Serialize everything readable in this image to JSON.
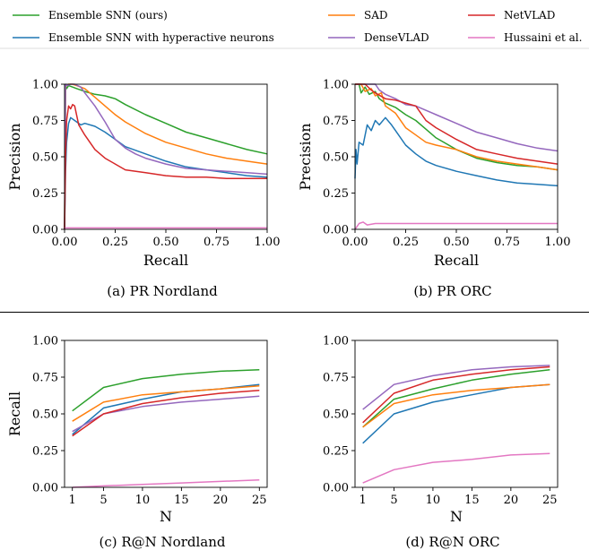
{
  "legend": [
    {
      "key": "ens",
      "label": "Ensemble SNN (ours)",
      "color": "#2ca02c"
    },
    {
      "key": "hyp",
      "label": "Ensemble SNN with hyperactive neurons",
      "color": "#1f77b4"
    },
    {
      "key": "sad",
      "label": "SAD",
      "color": "#ff7f0e"
    },
    {
      "key": "dv",
      "label": "DenseVLAD",
      "color": "#9467bd"
    },
    {
      "key": "nv",
      "label": "NetVLAD",
      "color": "#d62728"
    },
    {
      "key": "hus",
      "label": "Hussaini et al.",
      "color": "#e377c2"
    }
  ],
  "chart_data": [
    {
      "id": "a",
      "type": "line",
      "caption": "(a) PR Nordland",
      "xlabel": "Recall",
      "ylabel": "Precision",
      "xlim": [
        0,
        1
      ],
      "ylim": [
        0,
        1
      ],
      "xticks": [
        "0.00",
        "0.25",
        "0.50",
        "0.75",
        "1.00"
      ],
      "xtick_values": [
        0,
        0.25,
        0.5,
        0.75,
        1.0
      ],
      "yticks": [
        "0.00",
        "0.25",
        "0.50",
        "0.75",
        "1.00"
      ],
      "ytick_values": [
        0,
        0.25,
        0.5,
        0.75,
        1.0
      ],
      "series": [
        {
          "key": "ens",
          "x": [
            0.0,
            0.005,
            0.01,
            0.02,
            0.04,
            0.06,
            0.1,
            0.15,
            0.2,
            0.25,
            0.3,
            0.4,
            0.5,
            0.6,
            0.7,
            0.8,
            0.9,
            1.0
          ],
          "y": [
            0.0,
            0.99,
            0.97,
            0.99,
            0.98,
            0.97,
            0.95,
            0.93,
            0.92,
            0.9,
            0.86,
            0.79,
            0.73,
            0.67,
            0.63,
            0.59,
            0.55,
            0.52
          ]
        },
        {
          "key": "hyp",
          "x": [
            0.0,
            0.005,
            0.01,
            0.02,
            0.03,
            0.05,
            0.08,
            0.1,
            0.15,
            0.2,
            0.25,
            0.3,
            0.4,
            0.5,
            0.6,
            0.7,
            0.8,
            0.9,
            1.0
          ],
          "y": [
            0.0,
            0.4,
            0.6,
            0.73,
            0.77,
            0.75,
            0.72,
            0.73,
            0.71,
            0.67,
            0.62,
            0.57,
            0.52,
            0.47,
            0.43,
            0.41,
            0.39,
            0.37,
            0.36
          ]
        },
        {
          "key": "sad",
          "x": [
            0.0,
            0.005,
            0.01,
            0.02,
            0.04,
            0.06,
            0.1,
            0.15,
            0.2,
            0.25,
            0.3,
            0.4,
            0.5,
            0.6,
            0.7,
            0.8,
            0.9,
            1.0
          ],
          "y": [
            0.0,
            0.98,
            0.99,
            1.0,
            1.0,
            0.99,
            0.97,
            0.91,
            0.85,
            0.79,
            0.74,
            0.66,
            0.6,
            0.56,
            0.52,
            0.49,
            0.47,
            0.45
          ]
        },
        {
          "key": "dv",
          "x": [
            0.0,
            0.005,
            0.01,
            0.03,
            0.05,
            0.08,
            0.1,
            0.15,
            0.2,
            0.25,
            0.3,
            0.35,
            0.4,
            0.5,
            0.6,
            0.7,
            0.8,
            0.9,
            1.0
          ],
          "y": [
            0.0,
            1.0,
            0.99,
            1.0,
            1.0,
            0.98,
            0.94,
            0.85,
            0.74,
            0.62,
            0.56,
            0.52,
            0.49,
            0.45,
            0.42,
            0.41,
            0.4,
            0.39,
            0.38
          ]
        },
        {
          "key": "nv",
          "x": [
            0.0,
            0.005,
            0.01,
            0.02,
            0.03,
            0.04,
            0.05,
            0.07,
            0.1,
            0.15,
            0.2,
            0.25,
            0.3,
            0.4,
            0.5,
            0.6,
            0.7,
            0.8,
            0.9,
            1.0
          ],
          "y": [
            0.0,
            0.5,
            0.75,
            0.85,
            0.83,
            0.86,
            0.85,
            0.72,
            0.65,
            0.55,
            0.49,
            0.45,
            0.41,
            0.39,
            0.37,
            0.36,
            0.36,
            0.35,
            0.35,
            0.35
          ]
        },
        {
          "key": "hus",
          "x": [
            0.0,
            1.0
          ],
          "y": [
            0.01,
            0.01
          ]
        }
      ]
    },
    {
      "id": "b",
      "type": "line",
      "caption": "(b) PR ORC",
      "xlabel": "Recall",
      "ylabel": "Precision",
      "xlim": [
        0,
        1
      ],
      "ylim": [
        0,
        1
      ],
      "xticks": [
        "0.00",
        "0.25",
        "0.50",
        "0.75",
        "1.00"
      ],
      "xtick_values": [
        0,
        0.25,
        0.5,
        0.75,
        1.0
      ],
      "yticks": [
        "0.00",
        "0.25",
        "0.50",
        "0.75",
        "1.00"
      ],
      "ytick_values": [
        0,
        0.25,
        0.5,
        0.75,
        1.0
      ],
      "series": [
        {
          "key": "ens",
          "x": [
            0.0,
            0.02,
            0.03,
            0.05,
            0.07,
            0.1,
            0.12,
            0.15,
            0.2,
            0.25,
            0.3,
            0.35,
            0.4,
            0.5,
            0.6,
            0.7,
            0.8,
            0.9,
            1.0
          ],
          "y": [
            1.0,
            1.0,
            0.94,
            0.98,
            0.93,
            0.95,
            0.9,
            0.87,
            0.84,
            0.79,
            0.75,
            0.69,
            0.63,
            0.55,
            0.49,
            0.46,
            0.44,
            0.43,
            0.41
          ]
        },
        {
          "key": "hyp",
          "x": [
            0.0,
            0.005,
            0.01,
            0.02,
            0.04,
            0.06,
            0.08,
            0.1,
            0.12,
            0.15,
            0.18,
            0.2,
            0.25,
            0.3,
            0.35,
            0.4,
            0.5,
            0.6,
            0.7,
            0.8,
            0.9,
            1.0
          ],
          "y": [
            0.35,
            0.55,
            0.45,
            0.6,
            0.58,
            0.72,
            0.68,
            0.75,
            0.72,
            0.77,
            0.72,
            0.68,
            0.58,
            0.52,
            0.47,
            0.44,
            0.4,
            0.37,
            0.34,
            0.32,
            0.31,
            0.3
          ]
        },
        {
          "key": "sad",
          "x": [
            0.0,
            0.03,
            0.05,
            0.08,
            0.1,
            0.13,
            0.15,
            0.2,
            0.25,
            0.3,
            0.35,
            0.4,
            0.5,
            0.6,
            0.7,
            0.8,
            0.9,
            1.0
          ],
          "y": [
            1.0,
            1.0,
            0.95,
            0.97,
            0.92,
            0.94,
            0.85,
            0.8,
            0.7,
            0.65,
            0.6,
            0.58,
            0.55,
            0.5,
            0.47,
            0.45,
            0.43,
            0.41
          ]
        },
        {
          "key": "dv",
          "x": [
            0.0,
            0.1,
            0.12,
            0.15,
            0.2,
            0.25,
            0.3,
            0.4,
            0.5,
            0.6,
            0.7,
            0.8,
            0.9,
            1.0
          ],
          "y": [
            1.0,
            1.0,
            0.96,
            0.93,
            0.9,
            0.86,
            0.85,
            0.79,
            0.73,
            0.67,
            0.63,
            0.59,
            0.56,
            0.54
          ]
        },
        {
          "key": "nv",
          "x": [
            0.0,
            0.05,
            0.08,
            0.1,
            0.15,
            0.2,
            0.25,
            0.3,
            0.35,
            0.4,
            0.5,
            0.6,
            0.7,
            0.8,
            0.9,
            1.0
          ],
          "y": [
            1.0,
            1.0,
            0.96,
            0.94,
            0.9,
            0.89,
            0.87,
            0.85,
            0.75,
            0.7,
            0.62,
            0.55,
            0.52,
            0.49,
            0.47,
            0.45
          ]
        },
        {
          "key": "hus",
          "x": [
            0.0,
            0.01,
            0.02,
            0.04,
            0.06,
            0.1,
            0.2,
            0.3,
            0.4,
            0.5,
            0.6,
            0.7,
            0.8,
            0.9,
            1.0
          ],
          "y": [
            0.0,
            0.02,
            0.04,
            0.05,
            0.03,
            0.04,
            0.04,
            0.04,
            0.04,
            0.04,
            0.04,
            0.04,
            0.04,
            0.04,
            0.04
          ]
        }
      ]
    },
    {
      "id": "c",
      "type": "line",
      "caption": "(c) R@N Nordland",
      "xlabel": "N",
      "ylabel": "Recall",
      "xlim": [
        0,
        26
      ],
      "ylim": [
        0,
        1
      ],
      "xticks": [
        "1",
        "5",
        "10",
        "15",
        "20",
        "25"
      ],
      "xtick_values": [
        1,
        5,
        10,
        15,
        20,
        25
      ],
      "yticks": [
        "0.00",
        "0.25",
        "0.50",
        "0.75",
        "1.00"
      ],
      "ytick_values": [
        0,
        0.25,
        0.5,
        0.75,
        1.0
      ],
      "series": [
        {
          "key": "ens",
          "x": [
            1,
            5,
            10,
            15,
            20,
            25
          ],
          "y": [
            0.52,
            0.68,
            0.74,
            0.77,
            0.79,
            0.8
          ]
        },
        {
          "key": "hyp",
          "x": [
            1,
            5,
            10,
            15,
            20,
            25
          ],
          "y": [
            0.36,
            0.54,
            0.6,
            0.65,
            0.67,
            0.7
          ]
        },
        {
          "key": "sad",
          "x": [
            1,
            5,
            10,
            15,
            20,
            25
          ],
          "y": [
            0.45,
            0.58,
            0.63,
            0.65,
            0.67,
            0.69
          ]
        },
        {
          "key": "dv",
          "x": [
            1,
            5,
            10,
            15,
            20,
            25
          ],
          "y": [
            0.38,
            0.5,
            0.55,
            0.58,
            0.6,
            0.62
          ]
        },
        {
          "key": "nv",
          "x": [
            1,
            5,
            10,
            15,
            20,
            25
          ],
          "y": [
            0.35,
            0.5,
            0.57,
            0.61,
            0.64,
            0.66
          ]
        },
        {
          "key": "hus",
          "x": [
            1,
            5,
            10,
            15,
            20,
            25
          ],
          "y": [
            0.0,
            0.01,
            0.02,
            0.03,
            0.04,
            0.05
          ]
        }
      ]
    },
    {
      "id": "d",
      "type": "line",
      "caption": "(d) R@N ORC",
      "xlabel": "N",
      "ylabel": "",
      "xlim": [
        0,
        26
      ],
      "ylim": [
        0,
        1
      ],
      "xticks": [
        "1",
        "5",
        "10",
        "15",
        "20",
        "25"
      ],
      "xtick_values": [
        1,
        5,
        10,
        15,
        20,
        25
      ],
      "yticks": [
        "0.00",
        "0.25",
        "0.50",
        "0.75",
        "1.00"
      ],
      "ytick_values": [
        0,
        0.25,
        0.5,
        0.75,
        1.0
      ],
      "series": [
        {
          "key": "ens",
          "x": [
            1,
            5,
            10,
            15,
            20,
            25
          ],
          "y": [
            0.41,
            0.6,
            0.67,
            0.73,
            0.77,
            0.8
          ]
        },
        {
          "key": "hyp",
          "x": [
            1,
            5,
            10,
            15,
            20,
            25
          ],
          "y": [
            0.3,
            0.5,
            0.58,
            0.63,
            0.68,
            0.7
          ]
        },
        {
          "key": "sad",
          "x": [
            1,
            5,
            10,
            15,
            20,
            25
          ],
          "y": [
            0.41,
            0.57,
            0.63,
            0.66,
            0.68,
            0.7
          ]
        },
        {
          "key": "dv",
          "x": [
            1,
            5,
            10,
            15,
            20,
            25
          ],
          "y": [
            0.53,
            0.7,
            0.76,
            0.8,
            0.82,
            0.83
          ]
        },
        {
          "key": "nv",
          "x": [
            1,
            5,
            10,
            15,
            20,
            25
          ],
          "y": [
            0.44,
            0.64,
            0.73,
            0.77,
            0.8,
            0.82
          ]
        },
        {
          "key": "hus",
          "x": [
            1,
            5,
            10,
            15,
            20,
            25
          ],
          "y": [
            0.03,
            0.12,
            0.17,
            0.19,
            0.22,
            0.23
          ]
        }
      ]
    }
  ]
}
